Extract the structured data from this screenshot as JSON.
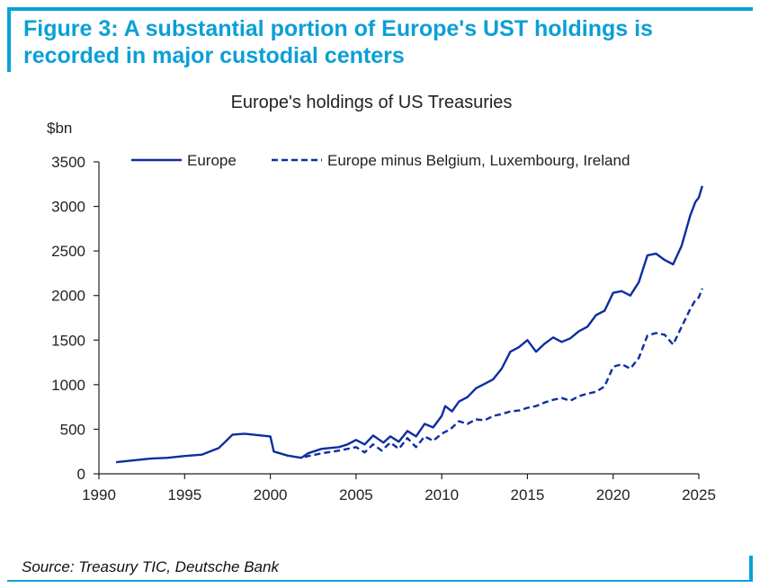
{
  "figure": {
    "title": "Figure 3: A substantial portion of Europe's UST holdings is recorded in major custodial centers",
    "source": "Source: Treasury TIC, Deutsche Bank",
    "accent_color": "#0aa0d8"
  },
  "chart_data": {
    "type": "line",
    "title": "Europe's holdings of US Treasuries",
    "ylabel": "$bn",
    "xlabel": "",
    "xlim": [
      1990,
      2025
    ],
    "ylim": [
      0,
      3500
    ],
    "xticks": [
      1990,
      1995,
      2000,
      2005,
      2010,
      2015,
      2020,
      2025
    ],
    "yticks": [
      0,
      500,
      1000,
      1500,
      2000,
      2500,
      3000,
      3500
    ],
    "legend_position": "top",
    "grid": false,
    "series": [
      {
        "name": "Europe",
        "style": "solid",
        "color": "#0d2ea0",
        "points": [
          [
            1991.0,
            130
          ],
          [
            1992.0,
            150
          ],
          [
            1993.0,
            170
          ],
          [
            1994.0,
            180
          ],
          [
            1995.0,
            200
          ],
          [
            1996.0,
            215
          ],
          [
            1997.0,
            290
          ],
          [
            1997.8,
            440
          ],
          [
            1998.5,
            450
          ],
          [
            1999.0,
            440
          ],
          [
            2000.0,
            420
          ],
          [
            2000.2,
            250
          ],
          [
            2001.0,
            205
          ],
          [
            2001.8,
            180
          ],
          [
            2002.2,
            230
          ],
          [
            2003.0,
            280
          ],
          [
            2004.0,
            300
          ],
          [
            2004.5,
            330
          ],
          [
            2005.0,
            380
          ],
          [
            2005.5,
            330
          ],
          [
            2006.0,
            430
          ],
          [
            2006.6,
            350
          ],
          [
            2007.0,
            420
          ],
          [
            2007.5,
            360
          ],
          [
            2008.0,
            480
          ],
          [
            2008.5,
            420
          ],
          [
            2009.0,
            560
          ],
          [
            2009.5,
            520
          ],
          [
            2010.0,
            650
          ],
          [
            2010.2,
            760
          ],
          [
            2010.6,
            700
          ],
          [
            2011.0,
            810
          ],
          [
            2011.5,
            860
          ],
          [
            2012.0,
            960
          ],
          [
            2012.5,
            1010
          ],
          [
            2013.0,
            1060
          ],
          [
            2013.5,
            1180
          ],
          [
            2014.0,
            1370
          ],
          [
            2014.5,
            1420
          ],
          [
            2015.0,
            1500
          ],
          [
            2015.5,
            1370
          ],
          [
            2016.0,
            1460
          ],
          [
            2016.5,
            1530
          ],
          [
            2017.0,
            1480
          ],
          [
            2017.5,
            1520
          ],
          [
            2018.0,
            1600
          ],
          [
            2018.5,
            1650
          ],
          [
            2019.0,
            1780
          ],
          [
            2019.5,
            1830
          ],
          [
            2020.0,
            2030
          ],
          [
            2020.5,
            2050
          ],
          [
            2021.0,
            2000
          ],
          [
            2021.5,
            2150
          ],
          [
            2022.0,
            2450
          ],
          [
            2022.5,
            2470
          ],
          [
            2023.0,
            2400
          ],
          [
            2023.5,
            2350
          ],
          [
            2024.0,
            2560
          ],
          [
            2024.5,
            2900
          ],
          [
            2024.8,
            3050
          ],
          [
            2025.0,
            3100
          ],
          [
            2025.2,
            3230
          ]
        ]
      },
      {
        "name": "Europe minus Belgium, Luxembourg, Ireland",
        "style": "dashed",
        "color": "#0d2ea0",
        "points": [
          [
            2002.0,
            190
          ],
          [
            2003.0,
            230
          ],
          [
            2004.0,
            260
          ],
          [
            2005.0,
            300
          ],
          [
            2005.5,
            240
          ],
          [
            2006.0,
            330
          ],
          [
            2006.5,
            260
          ],
          [
            2007.0,
            350
          ],
          [
            2007.5,
            280
          ],
          [
            2008.0,
            400
          ],
          [
            2008.5,
            300
          ],
          [
            2009.0,
            420
          ],
          [
            2009.5,
            370
          ],
          [
            2010.0,
            450
          ],
          [
            2010.5,
            500
          ],
          [
            2011.0,
            590
          ],
          [
            2011.5,
            560
          ],
          [
            2012.0,
            610
          ],
          [
            2012.5,
            600
          ],
          [
            2013.0,
            650
          ],
          [
            2013.5,
            670
          ],
          [
            2014.0,
            700
          ],
          [
            2014.5,
            710
          ],
          [
            2015.0,
            740
          ],
          [
            2015.5,
            760
          ],
          [
            2016.0,
            800
          ],
          [
            2016.5,
            830
          ],
          [
            2017.0,
            850
          ],
          [
            2017.5,
            820
          ],
          [
            2018.0,
            870
          ],
          [
            2018.5,
            900
          ],
          [
            2019.0,
            920
          ],
          [
            2019.5,
            980
          ],
          [
            2020.0,
            1200
          ],
          [
            2020.5,
            1230
          ],
          [
            2021.0,
            1180
          ],
          [
            2021.5,
            1300
          ],
          [
            2022.0,
            1550
          ],
          [
            2022.5,
            1580
          ],
          [
            2023.0,
            1560
          ],
          [
            2023.5,
            1450
          ],
          [
            2024.0,
            1650
          ],
          [
            2024.5,
            1850
          ],
          [
            2024.8,
            1950
          ],
          [
            2025.0,
            1980
          ],
          [
            2025.2,
            2080
          ]
        ]
      }
    ]
  }
}
